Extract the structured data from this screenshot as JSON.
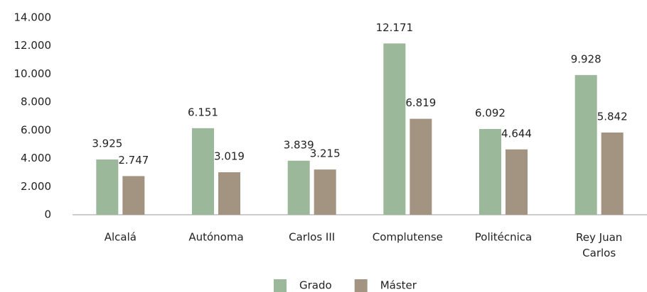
{
  "chart_data": {
    "type": "bar",
    "categories": [
      "Alcalá",
      "Autónoma",
      "Carlos III",
      "Complutense",
      "Politécnica",
      "Rey Juan Carlos"
    ],
    "series": [
      {
        "name": "Grado",
        "color": "#9bb89a",
        "values": [
          3925,
          6151,
          3839,
          12171,
          6092,
          9928
        ],
        "value_labels": [
          "3.925",
          "6.151",
          "3.839",
          "12.171",
          "6.092",
          "9.928"
        ]
      },
      {
        "name": "Máster",
        "color": "#a39482",
        "values": [
          2747,
          3019,
          3215,
          6819,
          4644,
          5842
        ],
        "value_labels": [
          "2.747",
          "3.019",
          "3.215",
          "6.819",
          "4.644",
          "5.842"
        ]
      }
    ],
    "ylim": [
      0,
      14000
    ],
    "yticks": [
      0,
      {
        "value": 2000,
        "label": "2.000"
      },
      {
        "value": 4000,
        "label": "4.000"
      },
      {
        "value": 6000,
        "label": "6.000"
      },
      {
        "value": 8000,
        "label": "8.000"
      },
      {
        "value": 10000,
        "label": "10.000"
      },
      {
        "value": 12000,
        "label": "12.000"
      },
      {
        "value": 14000,
        "label": "14.000"
      }
    ],
    "grid": false,
    "legend": "bottom"
  }
}
